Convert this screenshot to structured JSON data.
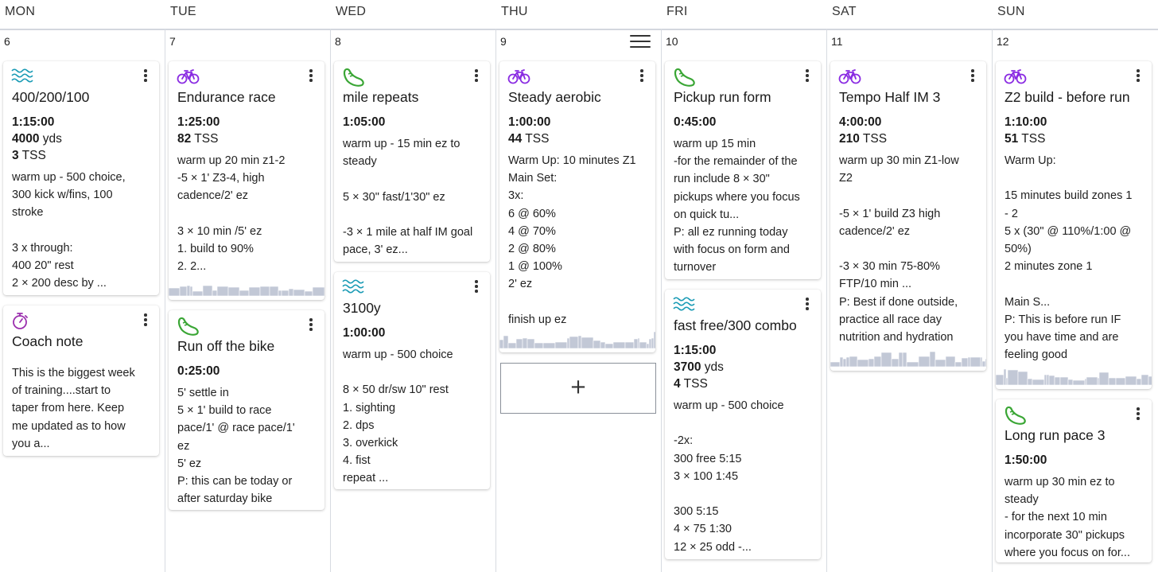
{
  "days": [
    {
      "name": "MON",
      "date": "6"
    },
    {
      "name": "TUE",
      "date": "7"
    },
    {
      "name": "WED",
      "date": "8"
    },
    {
      "name": "THU",
      "date": "9"
    },
    {
      "name": "FRI",
      "date": "10"
    },
    {
      "name": "SAT",
      "date": "11"
    },
    {
      "name": "SUN",
      "date": "12"
    }
  ],
  "add_workout_label": "+",
  "workouts": [
    {
      "day": 0,
      "type": "swim-icon",
      "title": "400/200/100",
      "stats": [
        [
          "1:15:00",
          ""
        ],
        [
          "4000",
          " yds"
        ],
        [
          "3",
          " TSS"
        ]
      ],
      "description": "warm up - 500 choice,\n300 kick w/fins, 100\nstroke\n\n3 x through:\n400 20\" rest\n2 × 200 desc by ...",
      "spark": 0
    },
    {
      "day": 0,
      "type": "stopwatch-icon",
      "title": "Coach note",
      "stats": [],
      "description": "This is the biggest week\nof training....start to\ntaper from here. Keep\nme updated as to how\nyou a...",
      "spark": 0
    },
    {
      "day": 1,
      "type": "bike-icon",
      "title": "Endurance race",
      "stats": [
        [
          "1:25:00",
          ""
        ],
        [
          "82",
          " TSS"
        ]
      ],
      "description": "warm up 20 min z1-2\n-5 × 1' Z3-4, high\ncadence/2' ez\n\n3 × 10 min /5' ez\n1. build to 90%\n2. 2...",
      "spark": 1
    },
    {
      "day": 1,
      "type": "run-icon",
      "title": "Run off the bike",
      "stats": [
        [
          "0:25:00",
          ""
        ]
      ],
      "description": "5' settle in\n5 × 1' build to race\npace/1' @ race pace/1'\nez\n5' ez\nP: this can be today or\nafter saturday bike",
      "spark": 0
    },
    {
      "day": 2,
      "type": "run-icon",
      "title": "mile repeats",
      "stats": [
        [
          "1:05:00",
          ""
        ]
      ],
      "description": "warm up - 15 min ez to\nsteady\n\n5 × 30\" fast/1'30\" ez\n\n-3 × 1 mile at half IM goal\npace, 3' ez...",
      "spark": 0
    },
    {
      "day": 2,
      "type": "swim-icon",
      "title": "3100y",
      "stats": [
        [
          "1:00:00",
          ""
        ]
      ],
      "description": "warm up - 500 choice\n\n8 × 50 dr/sw 10\" rest\n1. sighting\n2. dps\n3. overkick\n4. fist\nrepeat ...",
      "spark": 0
    },
    {
      "day": 3,
      "type": "bike-icon",
      "title": "Steady aerobic",
      "stats": [
        [
          "1:00:00",
          ""
        ],
        [
          "44",
          " TSS"
        ]
      ],
      "description": "Warm Up: 10 minutes Z1\nMain Set:\n3x:\n6 @ 60%\n4 @ 70%\n2 @ 80%\n1 @ 100%\n2' ez\n\nfinish up ez",
      "spark": 1
    },
    {
      "day": 4,
      "type": "run-icon",
      "title": "Pickup run form",
      "stats": [
        [
          "0:45:00",
          ""
        ]
      ],
      "description": "warm up 15 min\n-for the remainder of the\nrun include 8 × 30\"\npickups where you focus\non quick tu...\nP: all ez running today\nwith focus on form and\nturnover",
      "spark": 0
    },
    {
      "day": 4,
      "type": "swim-icon",
      "title": "fast free/300 combo",
      "stats": [
        [
          "1:15:00",
          ""
        ],
        [
          "3700",
          " yds"
        ],
        [
          "4",
          " TSS"
        ]
      ],
      "description": "warm up - 500 choice\n\n-2x:\n300 free 5:15\n3 × 100 1:45\n\n300 5:15\n4 × 75 1:30\n12 × 25 odd -...",
      "spark": 0
    },
    {
      "day": 5,
      "type": "bike-icon",
      "title": "Tempo Half IM 3",
      "stats": [
        [
          "4:00:00",
          ""
        ],
        [
          "210",
          " TSS"
        ]
      ],
      "description": "warm up 30 min Z1-low\nZ2\n\n-5 × 1' build Z3 high\ncadence/2' ez\n\n-3 × 30 min 75-80%\nFTP/10 min ...\nP: Best if done outside,\npractice all race day\nnutrition and hydration",
      "spark": 1
    },
    {
      "day": 6,
      "type": "bike-icon",
      "title": "Z2 build - before run",
      "stats": [
        [
          "1:10:00",
          ""
        ],
        [
          "51",
          " TSS"
        ]
      ],
      "description": "Warm Up:\n\n15 minutes build zones 1\n- 2\n5 x (30\" @ 110%/1:00 @\n50%)\n2 minutes zone 1\n\nMain S...\nP: This is before run IF\nyou have time and are\nfeeling good",
      "spark": 1
    },
    {
      "day": 6,
      "type": "run-icon",
      "title": "Long run pace 3",
      "stats": [
        [
          "1:50:00",
          ""
        ]
      ],
      "description": "warm up 30 min ez to\nsteady\n- for the next 10 min\nincorporate 30\" pickups\nwhere you focus on for...",
      "spark": 0
    }
  ],
  "colors": {
    "swim": "#1a9bb5",
    "bike": "#8a2be2",
    "run": "#3aa635",
    "note": "#9b2fae",
    "spark": "#c2c8d6"
  }
}
